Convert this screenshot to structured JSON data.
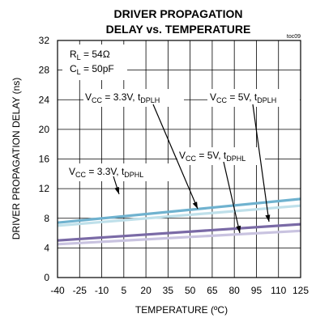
{
  "chart_data": {
    "type": "line",
    "title_line1": "DRIVER PROPAGATION",
    "title_line2": "DELAY vs. TEMPERATURE",
    "ref_tag": "toc09",
    "xlabel": "TEMPERATURE (ºC)",
    "ylabel": "DRIVER PROPAGATION DELAY (ns)",
    "xlim": [
      -40,
      125
    ],
    "ylim": [
      0,
      32
    ],
    "xticks": [
      -40,
      -25,
      -10,
      5,
      20,
      35,
      50,
      65,
      80,
      95,
      110,
      125
    ],
    "yticks": [
      0,
      4,
      8,
      12,
      16,
      20,
      24,
      28,
      32
    ],
    "grid": true,
    "conditions": {
      "rl": {
        "main": "R",
        "sub": "L",
        "rest": " = 54Ω"
      },
      "cl": {
        "main": "C",
        "sub": "L",
        "rest": " = 50pF"
      }
    },
    "series": [
      {
        "name": "VCC = 5V, tDPLH",
        "color": "#6fb2cf",
        "x": [
          -40,
          125
        ],
        "y": [
          7.4,
          10.6
        ]
      },
      {
        "name": "VCC = 3.3V, tDPLH",
        "color": "#bfe0ea",
        "x": [
          -40,
          125
        ],
        "y": [
          7.0,
          9.7
        ]
      },
      {
        "name": "VCC = 5V, tDPHL",
        "color": "#7a6aa6",
        "x": [
          -40,
          125
        ],
        "y": [
          5.0,
          7.2
        ]
      },
      {
        "name": "VCC = 3.3V, tDPHL",
        "color": "#c9c3e0",
        "x": [
          -40,
          125
        ],
        "y": [
          4.5,
          6.3
        ]
      }
    ],
    "annotations": [
      {
        "main": "V",
        "sub": "CC",
        "rest": " = 3.3V, t",
        "sub2": "DPLH"
      },
      {
        "main": "V",
        "sub": "CC",
        "rest": " = 5V, t",
        "sub2": "DPLH"
      },
      {
        "main": "V",
        "sub": "CC",
        "rest": " = 5V, t",
        "sub2": "DPHL"
      },
      {
        "main": "V",
        "sub": "CC",
        "rest": " = 3.3V, t",
        "sub2": "DPHL"
      }
    ]
  }
}
